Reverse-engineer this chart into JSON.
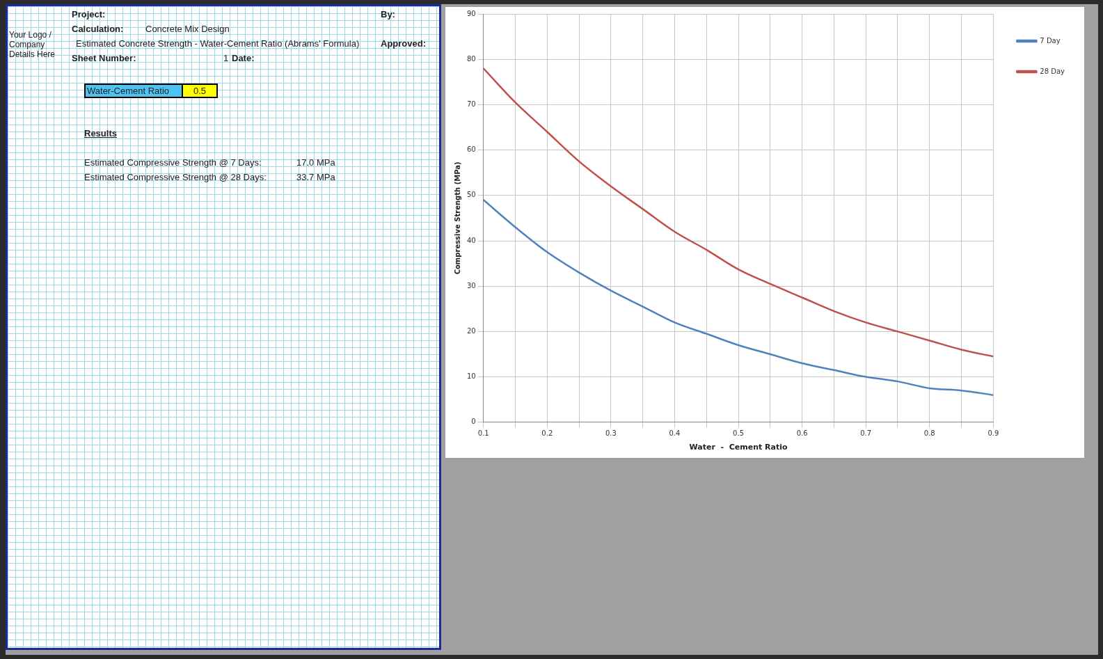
{
  "chart_data": [
    {
      "type": "other",
      "annotations": [
        "Your Logo / Company Details Here",
        "Project:",
        "Calculation:",
        "Concrete Mix Design",
        "Estimated Concrete Strength - Water-Cement Ratio (Abrams' Formula)",
        "Sheet Number:",
        "1",
        "Date:",
        "By:",
        "Approved:",
        "Water-Cement Ratio",
        "0.5",
        "Results",
        "Estimated Compressive Strength @ 7 Days:",
        "17.0 MPa",
        "Estimated Compressive Strength @ 28 Days:",
        "33.7 MPa"
      ]
    },
    {
      "type": "line",
      "xlabel": "Water  -  Cement Ratio",
      "ylabel": "Compressive Strength (MPa)",
      "x": [
        0.1,
        0.15,
        0.2,
        0.25,
        0.3,
        0.35,
        0.4,
        0.45,
        0.5,
        0.55,
        0.6,
        0.65,
        0.7,
        0.75,
        0.8,
        0.85,
        0.9
      ],
      "series": [
        {
          "name": "7 Day",
          "color": "#4f81bd",
          "values": [
            49,
            43,
            37.5,
            33,
            29,
            25.5,
            22,
            19.5,
            17,
            15,
            13,
            11.5,
            10,
            9,
            7.5,
            7,
            6
          ]
        },
        {
          "name": "28 Day",
          "color": "#c0504d",
          "values": [
            78,
            70.5,
            64,
            57.5,
            52,
            47,
            42,
            38,
            33.7,
            30.5,
            27.5,
            24.5,
            22,
            20,
            18,
            16,
            14.5
          ]
        }
      ],
      "xlim": [
        0.1,
        0.9
      ],
      "xticks": [
        0.1,
        {
          "value": 0.15,
          "label": null
        },
        0.2,
        {
          "value": 0.25,
          "label": null
        },
        0.3,
        {
          "value": 0.35,
          "label": null
        },
        0.4,
        {
          "value": 0.45,
          "label": null
        },
        0.5,
        {
          "value": 0.55,
          "label": null
        },
        0.6,
        {
          "value": 0.65,
          "label": null
        },
        0.7,
        {
          "value": 0.75,
          "label": null
        },
        0.8,
        {
          "value": 0.85,
          "label": null
        },
        0.9
      ],
      "ylim": [
        0,
        90
      ],
      "yticks": [
        0,
        10,
        20,
        30,
        40,
        50,
        60,
        70,
        80,
        90
      ],
      "grid": true,
      "legend": "top right",
      "marker": "none",
      "line_style": "solid"
    }
  ]
}
